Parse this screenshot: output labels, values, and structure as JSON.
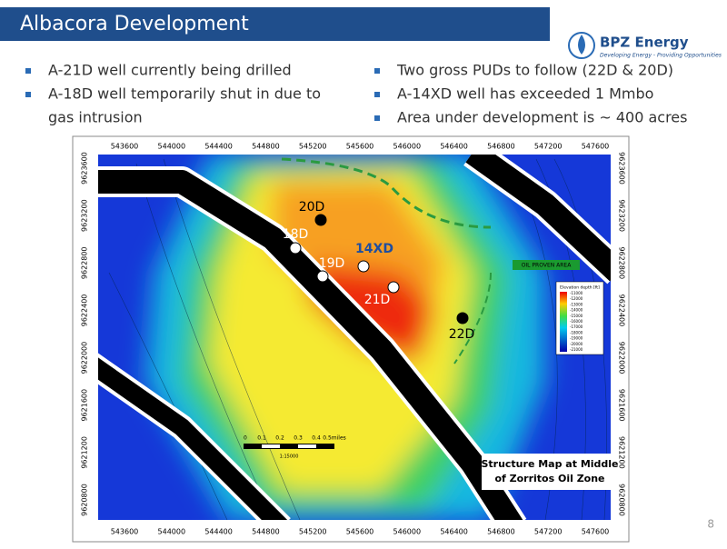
{
  "header": {
    "title": "Albacora Development",
    "logo": {
      "name": "BPZ Energy",
      "tagline": "Developing Energy - Providing Opportunities"
    }
  },
  "bullets_left": [
    [
      "A-21D well currently being drilled"
    ],
    [
      "A-18D well temporarily shut in due to",
      "gas intrusion"
    ]
  ],
  "bullets_right": [
    [
      "Two gross PUDs to follow (22D & 20D)"
    ],
    [
      "A-14XD well has exceeded 1 Mmbo"
    ],
    [
      "Area under development is ~ 400 acres"
    ]
  ],
  "map": {
    "x_ticks": [
      543600,
      544000,
      544400,
      544800,
      545200,
      545600,
      546000,
      546400,
      546800,
      547200,
      547600
    ],
    "y_ticks": [
      9620800,
      9621200,
      9621600,
      9622000,
      9622400,
      9622800,
      9623200,
      9623600
    ],
    "wells": [
      {
        "label": "20D"
      },
      {
        "label": "18D"
      },
      {
        "label": "19D"
      },
      {
        "label": "14XD"
      },
      {
        "label": "21D"
      },
      {
        "label": "22D"
      }
    ],
    "area_label": "OIL PROVEN AREA",
    "legend": {
      "title": "Elevation depth [ft]",
      "levels": [
        -11000,
        -12000,
        -13000,
        -14000,
        -15000,
        -16000,
        -17000,
        -18000,
        -19000,
        -20000,
        -21000
      ]
    },
    "scale": {
      "labels": [
        "0",
        "0.1",
        "0.2",
        "0.3",
        "0.4",
        "0.5miles"
      ],
      "ratio": "1:15000"
    },
    "caption": [
      "Structure Map at Middle",
      "of Zorritos Oil Zone"
    ]
  },
  "page_number": "8"
}
